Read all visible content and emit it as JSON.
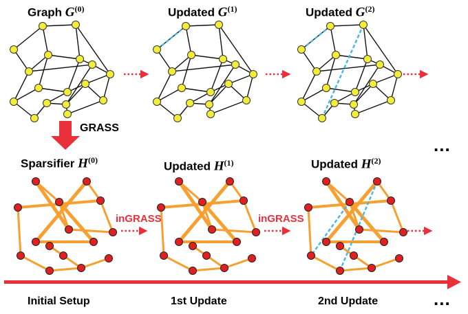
{
  "titles": {
    "graph0": {
      "text": "Graph",
      "var": "G",
      "sup": "(0)"
    },
    "graph1": {
      "text": "Updated",
      "var": "G",
      "sup": "(1)"
    },
    "graph2": {
      "text": "Updated",
      "var": "G",
      "sup": "(2)"
    },
    "sparse0": {
      "text": "Sparsifier",
      "var": "H",
      "sup": "(0)"
    },
    "sparse1": {
      "text": "Updated",
      "var": "H",
      "sup": "(1)"
    },
    "sparse2": {
      "text": "Updated",
      "var": "H",
      "sup": "(2)"
    }
  },
  "arrow_labels": {
    "grass": "GRASS",
    "ingrass_1": "inGRASS",
    "ingrass_2": "inGRASS"
  },
  "timeline": {
    "stage_0": "Initial Setup",
    "stage_1": "1st Update",
    "stage_2": "2nd Update",
    "more": "..."
  },
  "colors": {
    "graph_node": "#f2ec3a",
    "sparse_node": "#e02020",
    "sparse_edge": "#f5a030",
    "new_edge": "#45b6e3",
    "arrow": "#e8313a"
  }
}
